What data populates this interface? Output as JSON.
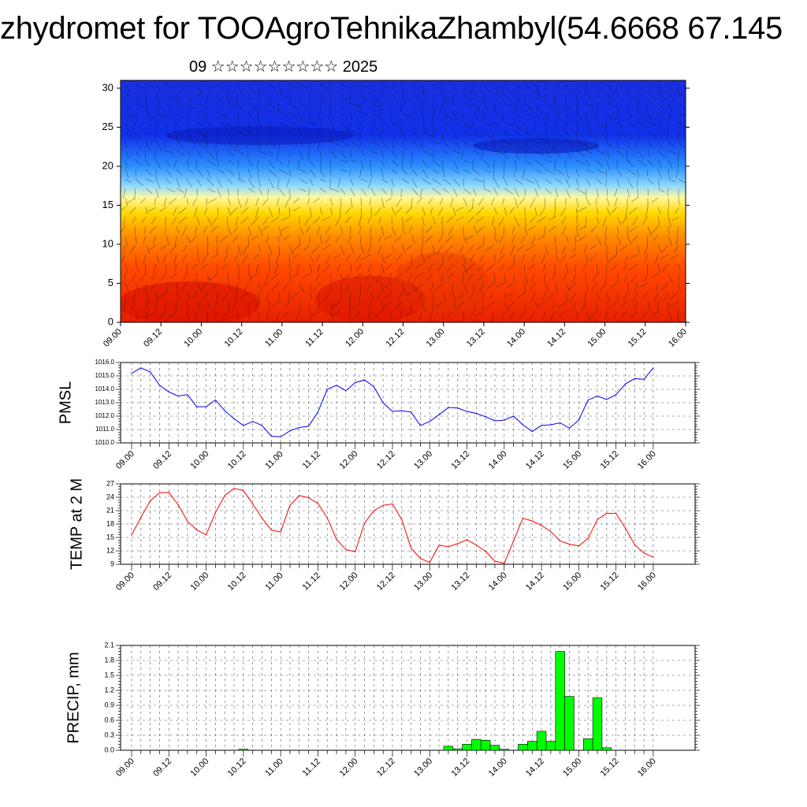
{
  "header": {
    "title": "zhydromet for TOOAgroTehnikaZhambyl(54.6668 67.145",
    "subtitle": "09 ☆☆☆☆☆☆☆☆☆ 2025"
  },
  "chart_data": [
    {
      "type": "heatmap",
      "xlabel": "",
      "ylabel": "",
      "x_ticks": [
        "09.00",
        "09.12",
        "10.00",
        "10.12",
        "11.00",
        "11.12",
        "12.00",
        "12.12",
        "13.00",
        "13.12",
        "14.00",
        "14.12",
        "15.00",
        "15.12",
        "16.00"
      ],
      "y_ticks": [
        "0",
        "5",
        "10",
        "15",
        "20",
        "25",
        "30"
      ],
      "xlim": [
        0,
        14
      ],
      "ylim": [
        0,
        31
      ],
      "vertical_profile": [
        {
          "level": 0,
          "color": "#e82000"
        },
        {
          "level": 7,
          "color": "#ff4a00"
        },
        {
          "level": 11,
          "color": "#ff8c00"
        },
        {
          "level": 14,
          "color": "#ffd800"
        },
        {
          "level": 16,
          "color": "#fff8a0"
        },
        {
          "level": 17.5,
          "color": "#8fd8ff"
        },
        {
          "level": 20,
          "color": "#2b8fff"
        },
        {
          "level": 24,
          "color": "#1030e8"
        },
        {
          "level": 31,
          "color": "#1a2ee0"
        }
      ],
      "overlay": "wind barbs"
    },
    {
      "type": "line",
      "ylabel": "PMSL",
      "x_ticks": [
        "09.00",
        "09.12",
        "10.00",
        "10.12",
        "11.00",
        "11.12",
        "12.00",
        "12.12",
        "13.00",
        "13.12",
        "14.00",
        "14.12",
        "15.00",
        "15.12",
        "16.00"
      ],
      "y_ticks": [
        "1010.0",
        "1011.0",
        "1012.0",
        "1013.0",
        "1014.0",
        "1015.0",
        "1016.0"
      ],
      "ylim": [
        1010,
        1016
      ],
      "color": "#0000ff",
      "values": [
        1015.2,
        1015.6,
        1015.3,
        1014.3,
        1013.8,
        1013.5,
        1013.6,
        1012.7,
        1012.7,
        1013.2,
        1012.4,
        1011.8,
        1011.3,
        1011.6,
        1011.3,
        1010.5,
        1010.45,
        1010.9,
        1011.15,
        1011.25,
        1012.3,
        1014.0,
        1014.3,
        1013.9,
        1014.5,
        1014.7,
        1014.2,
        1013.0,
        1012.35,
        1012.4,
        1012.3,
        1011.3,
        1011.6,
        1012.1,
        1012.65,
        1012.6,
        1012.35,
        1012.2,
        1011.95,
        1011.65,
        1011.7,
        1012.0,
        1011.35,
        1010.85,
        1011.3,
        1011.35,
        1011.5,
        1011.1,
        1011.7,
        1013.2,
        1013.5,
        1013.25,
        1013.6,
        1014.4,
        1014.8,
        1014.75,
        1015.6
      ]
    },
    {
      "type": "line",
      "ylabel": "TEMP at 2 M",
      "x_ticks": [
        "09.00",
        "09.12",
        "10.00",
        "10.12",
        "11.00",
        "11.12",
        "12.00",
        "12.12",
        "13.00",
        "13.12",
        "14.00",
        "14.12",
        "15.00",
        "15.12",
        "16.00"
      ],
      "y_ticks": [
        "9",
        "12",
        "15",
        "18",
        "21",
        "24",
        "27"
      ],
      "ylim": [
        9,
        27
      ],
      "color": "#ff0000",
      "values": [
        15.6,
        19.5,
        23.2,
        25.0,
        25.1,
        22.3,
        18.6,
        16.7,
        15.6,
        20.6,
        24.4,
        26.0,
        25.5,
        22.5,
        19.3,
        16.7,
        16.2,
        22.2,
        24.4,
        23.9,
        22.6,
        19.4,
        14.6,
        12.3,
        11.8,
        18.2,
        21.0,
        22.2,
        22.5,
        19.0,
        12.6,
        10.3,
        9.4,
        13.3,
        12.9,
        13.6,
        14.5,
        13.3,
        11.9,
        9.7,
        9.2,
        14.2,
        19.3,
        18.7,
        17.7,
        16.3,
        14.2,
        13.5,
        13.1,
        14.8,
        19.0,
        20.4,
        20.4,
        17.1,
        13.4,
        11.5,
        10.6
      ]
    },
    {
      "type": "bar",
      "ylabel": "PRECIP, mm",
      "x_ticks": [
        "09.00",
        "09.12",
        "10.00",
        "10.12",
        "11.00",
        "11.12",
        "12.00",
        "12.12",
        "13.00",
        "13.12",
        "14.00",
        "14.12",
        "15.00",
        "15.12",
        "16.00"
      ],
      "y_ticks": [
        "0.0",
        "0.3",
        "0.6",
        "0.9",
        "1.2",
        "1.5",
        "1.8",
        "2.1"
      ],
      "ylim": [
        0,
        2.1
      ],
      "color": "#00ff00",
      "values": [
        0,
        0,
        0,
        0,
        0,
        0,
        0,
        0,
        0,
        0,
        0,
        0,
        0.02,
        0,
        0,
        0,
        0,
        0,
        0,
        0,
        0,
        0,
        0,
        0,
        0,
        0,
        0,
        0,
        0,
        0,
        0,
        0,
        0,
        0,
        0.08,
        0.03,
        0.12,
        0.22,
        0.2,
        0.1,
        0.02,
        0,
        0.12,
        0.18,
        0.38,
        0.18,
        1.98,
        1.08,
        0,
        0.23,
        1.05,
        0.05,
        0,
        0,
        0,
        0,
        0
      ]
    }
  ]
}
